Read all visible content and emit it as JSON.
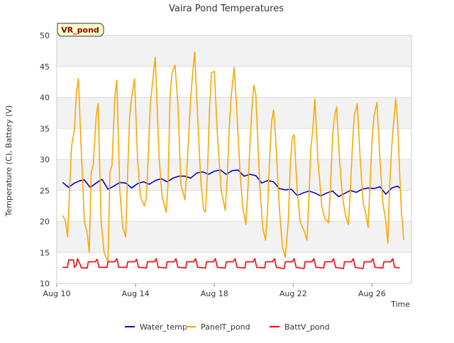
{
  "chart_data": {
    "type": "line",
    "title": "Vaira Pond Temperatures",
    "xlabel": "Time",
    "ylabel": "Temperature (C), Battery (V)",
    "badge": "VR_pond",
    "ylim": [
      10,
      50
    ],
    "xlim_days": [
      0,
      18
    ],
    "x_ticks": [
      {
        "day": 0,
        "label": "Aug 10"
      },
      {
        "day": 4,
        "label": "Aug 14"
      },
      {
        "day": 8,
        "label": "Aug 18"
      },
      {
        "day": 12,
        "label": "Aug 22"
      },
      {
        "day": 16,
        "label": "Aug 26"
      }
    ],
    "y_ticks": [
      10,
      15,
      20,
      25,
      30,
      35,
      40,
      45,
      50
    ],
    "grid": true,
    "legend_position": "bottom",
    "series": [
      {
        "name": "Water_temp",
        "color": "#0000cc",
        "points": [
          [
            0.3,
            26.3
          ],
          [
            0.6,
            25.5
          ],
          [
            0.9,
            26.2
          ],
          [
            1.2,
            26.6
          ],
          [
            1.4,
            26.7
          ],
          [
            1.7,
            25.5
          ],
          [
            2.0,
            26.2
          ],
          [
            2.3,
            26.8
          ],
          [
            2.6,
            25.2
          ],
          [
            2.9,
            25.7
          ],
          [
            3.2,
            26.3
          ],
          [
            3.5,
            26.2
          ],
          [
            3.8,
            25.4
          ],
          [
            4.1,
            26.1
          ],
          [
            4.4,
            26.4
          ],
          [
            4.7,
            26.0
          ],
          [
            5.0,
            26.6
          ],
          [
            5.3,
            26.9
          ],
          [
            5.6,
            26.4
          ],
          [
            5.9,
            27.0
          ],
          [
            6.2,
            27.3
          ],
          [
            6.5,
            27.3
          ],
          [
            6.8,
            27.0
          ],
          [
            7.1,
            27.8
          ],
          [
            7.4,
            28.0
          ],
          [
            7.7,
            27.6
          ],
          [
            8.0,
            28.1
          ],
          [
            8.3,
            28.3
          ],
          [
            8.6,
            27.6
          ],
          [
            8.9,
            28.2
          ],
          [
            9.2,
            28.3
          ],
          [
            9.5,
            27.3
          ],
          [
            9.8,
            27.6
          ],
          [
            10.1,
            27.4
          ],
          [
            10.4,
            26.2
          ],
          [
            10.7,
            26.6
          ],
          [
            11.0,
            26.4
          ],
          [
            11.3,
            25.3
          ],
          [
            11.6,
            25.1
          ],
          [
            11.9,
            25.2
          ],
          [
            12.2,
            24.2
          ],
          [
            12.5,
            24.6
          ],
          [
            12.8,
            24.9
          ],
          [
            13.1,
            24.6
          ],
          [
            13.4,
            24.1
          ],
          [
            13.7,
            24.6
          ],
          [
            14.0,
            24.9
          ],
          [
            14.3,
            24.0
          ],
          [
            14.6,
            24.5
          ],
          [
            14.9,
            25.0
          ],
          [
            15.2,
            24.7
          ],
          [
            15.5,
            25.2
          ],
          [
            15.8,
            25.4
          ],
          [
            16.1,
            25.3
          ],
          [
            16.4,
            25.6
          ],
          [
            16.7,
            24.4
          ],
          [
            17.0,
            25.4
          ],
          [
            17.3,
            25.7
          ],
          [
            17.4,
            25.4
          ]
        ]
      },
      {
        "name": "PanelT_pond",
        "color": "#ffa500",
        "points": [
          [
            0.3,
            21.0
          ],
          [
            0.45,
            20.0
          ],
          [
            0.55,
            17.5
          ],
          [
            0.65,
            25.0
          ],
          [
            0.75,
            32.0
          ],
          [
            0.9,
            35.0
          ],
          [
            1.0,
            41.0
          ],
          [
            1.1,
            43.0
          ],
          [
            1.2,
            35.0
          ],
          [
            1.4,
            20.0
          ],
          [
            1.55,
            18.0
          ],
          [
            1.65,
            15.0
          ],
          [
            1.75,
            28.0
          ],
          [
            1.85,
            29.0
          ],
          [
            2.0,
            37.0
          ],
          [
            2.1,
            39.0
          ],
          [
            2.25,
            20.0
          ],
          [
            2.4,
            15.0
          ],
          [
            2.6,
            13.5
          ],
          [
            2.7,
            28.0
          ],
          [
            2.8,
            29.0
          ],
          [
            2.95,
            40.0
          ],
          [
            3.05,
            42.8
          ],
          [
            3.2,
            25.0
          ],
          [
            3.35,
            19.0
          ],
          [
            3.5,
            17.5
          ],
          [
            3.6,
            28.0
          ],
          [
            3.7,
            37.0
          ],
          [
            3.8,
            40.0
          ],
          [
            3.95,
            43.0
          ],
          [
            4.1,
            30.0
          ],
          [
            4.25,
            24.0
          ],
          [
            4.45,
            22.5
          ],
          [
            4.55,
            24.0
          ],
          [
            4.65,
            31.0
          ],
          [
            4.75,
            39.0
          ],
          [
            4.85,
            42.0
          ],
          [
            5.0,
            46.5
          ],
          [
            5.2,
            30.0
          ],
          [
            5.35,
            24.0
          ],
          [
            5.55,
            21.5
          ],
          [
            5.65,
            26.0
          ],
          [
            5.75,
            40.0
          ],
          [
            5.85,
            44.0
          ],
          [
            6.0,
            45.2
          ],
          [
            6.15,
            39.0
          ],
          [
            6.3,
            26.0
          ],
          [
            6.5,
            23.5
          ],
          [
            6.6,
            28.0
          ],
          [
            6.7,
            34.0
          ],
          [
            6.8,
            40.0
          ],
          [
            6.9,
            44.0
          ],
          [
            7.0,
            47.3
          ],
          [
            7.15,
            37.0
          ],
          [
            7.3,
            27.0
          ],
          [
            7.45,
            22.0
          ],
          [
            7.55,
            21.5
          ],
          [
            7.65,
            28.0
          ],
          [
            7.75,
            38.0
          ],
          [
            7.85,
            44.0
          ],
          [
            8.0,
            44.2
          ],
          [
            8.15,
            34.0
          ],
          [
            8.35,
            25.0
          ],
          [
            8.55,
            21.8
          ],
          [
            8.65,
            27.0
          ],
          [
            8.75,
            35.0
          ],
          [
            8.85,
            40.0
          ],
          [
            9.0,
            44.8
          ],
          [
            9.1,
            40.0
          ],
          [
            9.3,
            28.0
          ],
          [
            9.45,
            22.0
          ],
          [
            9.6,
            19.5
          ],
          [
            9.7,
            25.0
          ],
          [
            9.8,
            32.0
          ],
          [
            9.9,
            38.0
          ],
          [
            10.0,
            42.0
          ],
          [
            10.1,
            40.5
          ],
          [
            10.3,
            26.0
          ],
          [
            10.45,
            19.0
          ],
          [
            10.6,
            17.0
          ],
          [
            10.7,
            22.0
          ],
          [
            10.8,
            30.0
          ],
          [
            10.9,
            36.0
          ],
          [
            11.0,
            38.0
          ],
          [
            11.1,
            34.0
          ],
          [
            11.3,
            22.0
          ],
          [
            11.45,
            16.0
          ],
          [
            11.6,
            14.2
          ],
          [
            11.75,
            20.0
          ],
          [
            11.85,
            29.0
          ],
          [
            11.95,
            33.5
          ],
          [
            12.05,
            34.0
          ],
          [
            12.2,
            25.0
          ],
          [
            12.35,
            20.0
          ],
          [
            12.55,
            18.5
          ],
          [
            12.7,
            17.0
          ],
          [
            12.8,
            24.0
          ],
          [
            12.9,
            32.0
          ],
          [
            13.0,
            35.0
          ],
          [
            13.1,
            39.8
          ],
          [
            13.25,
            30.0
          ],
          [
            13.45,
            22.5
          ],
          [
            13.6,
            20.5
          ],
          [
            13.8,
            19.8
          ],
          [
            13.9,
            26.0
          ],
          [
            14.0,
            34.0
          ],
          [
            14.1,
            37.0
          ],
          [
            14.2,
            38.5
          ],
          [
            14.35,
            30.0
          ],
          [
            14.5,
            24.0
          ],
          [
            14.65,
            21.0
          ],
          [
            14.8,
            19.5
          ],
          [
            14.9,
            25.0
          ],
          [
            15.0,
            32.0
          ],
          [
            15.1,
            37.0
          ],
          [
            15.25,
            39.0
          ],
          [
            15.4,
            30.0
          ],
          [
            15.55,
            23.0
          ],
          [
            15.7,
            21.0
          ],
          [
            15.8,
            19.0
          ],
          [
            15.9,
            26.0
          ],
          [
            16.0,
            33.0
          ],
          [
            16.1,
            37.0
          ],
          [
            16.25,
            39.2
          ],
          [
            16.4,
            30.0
          ],
          [
            16.55,
            23.0
          ],
          [
            16.7,
            20.0
          ],
          [
            16.8,
            16.5
          ],
          [
            16.9,
            26.0
          ],
          [
            17.0,
            32.0
          ],
          [
            17.1,
            36.0
          ],
          [
            17.2,
            39.8
          ],
          [
            17.3,
            36.0
          ],
          [
            17.4,
            28.0
          ],
          [
            17.5,
            21.0
          ],
          [
            17.55,
            20.0
          ],
          [
            17.6,
            17.0
          ]
        ]
      },
      {
        "name": "BattV_pond",
        "color": "#ff0000",
        "points": [
          [
            0.3,
            12.6
          ],
          [
            0.55,
            12.6
          ],
          [
            0.6,
            13.8
          ],
          [
            0.85,
            13.8
          ],
          [
            0.9,
            12.6
          ],
          [
            1.0,
            13.0
          ],
          [
            1.05,
            14.0
          ],
          [
            1.2,
            13.0
          ],
          [
            1.25,
            12.5
          ],
          [
            1.55,
            12.5
          ],
          [
            1.6,
            13.5
          ],
          [
            1.95,
            13.5
          ],
          [
            2.05,
            13.9
          ],
          [
            2.15,
            12.6
          ],
          [
            2.55,
            12.6
          ],
          [
            2.6,
            13.5
          ],
          [
            2.95,
            13.5
          ],
          [
            3.05,
            14.0
          ],
          [
            3.15,
            12.6
          ],
          [
            3.55,
            12.6
          ],
          [
            3.6,
            13.5
          ],
          [
            3.95,
            13.5
          ],
          [
            4.05,
            13.9
          ],
          [
            4.15,
            12.6
          ],
          [
            4.55,
            12.5
          ],
          [
            4.6,
            13.5
          ],
          [
            4.95,
            13.5
          ],
          [
            5.05,
            14.0
          ],
          [
            5.15,
            12.6
          ],
          [
            5.55,
            12.5
          ],
          [
            5.6,
            13.5
          ],
          [
            5.95,
            13.5
          ],
          [
            6.05,
            14.0
          ],
          [
            6.15,
            12.6
          ],
          [
            6.55,
            12.5
          ],
          [
            6.6,
            13.5
          ],
          [
            6.95,
            13.5
          ],
          [
            7.05,
            14.0
          ],
          [
            7.15,
            12.6
          ],
          [
            7.55,
            12.5
          ],
          [
            7.6,
            13.5
          ],
          [
            7.95,
            13.5
          ],
          [
            8.05,
            14.0
          ],
          [
            8.15,
            12.6
          ],
          [
            8.55,
            12.5
          ],
          [
            8.6,
            13.5
          ],
          [
            8.95,
            13.5
          ],
          [
            9.05,
            14.0
          ],
          [
            9.15,
            12.6
          ],
          [
            9.55,
            12.5
          ],
          [
            9.6,
            13.5
          ],
          [
            9.95,
            13.5
          ],
          [
            10.05,
            14.0
          ],
          [
            10.15,
            12.6
          ],
          [
            10.55,
            12.5
          ],
          [
            10.6,
            13.5
          ],
          [
            10.95,
            13.5
          ],
          [
            11.05,
            14.0
          ],
          [
            11.15,
            12.6
          ],
          [
            11.55,
            12.4
          ],
          [
            11.6,
            13.5
          ],
          [
            11.95,
            13.5
          ],
          [
            12.05,
            14.0
          ],
          [
            12.15,
            12.6
          ],
          [
            12.55,
            12.4
          ],
          [
            12.6,
            13.5
          ],
          [
            12.95,
            13.5
          ],
          [
            13.05,
            14.0
          ],
          [
            13.15,
            12.6
          ],
          [
            13.55,
            12.5
          ],
          [
            13.6,
            13.5
          ],
          [
            13.95,
            13.5
          ],
          [
            14.05,
            14.0
          ],
          [
            14.15,
            12.6
          ],
          [
            14.55,
            12.4
          ],
          [
            14.6,
            13.5
          ],
          [
            14.95,
            13.5
          ],
          [
            15.05,
            14.0
          ],
          [
            15.15,
            12.6
          ],
          [
            15.55,
            12.4
          ],
          [
            15.6,
            13.5
          ],
          [
            15.95,
            13.5
          ],
          [
            16.05,
            14.0
          ],
          [
            16.15,
            12.6
          ],
          [
            16.55,
            12.5
          ],
          [
            16.6,
            13.5
          ],
          [
            16.95,
            13.5
          ],
          [
            17.05,
            14.0
          ],
          [
            17.15,
            12.6
          ],
          [
            17.4,
            12.5
          ]
        ]
      }
    ]
  }
}
